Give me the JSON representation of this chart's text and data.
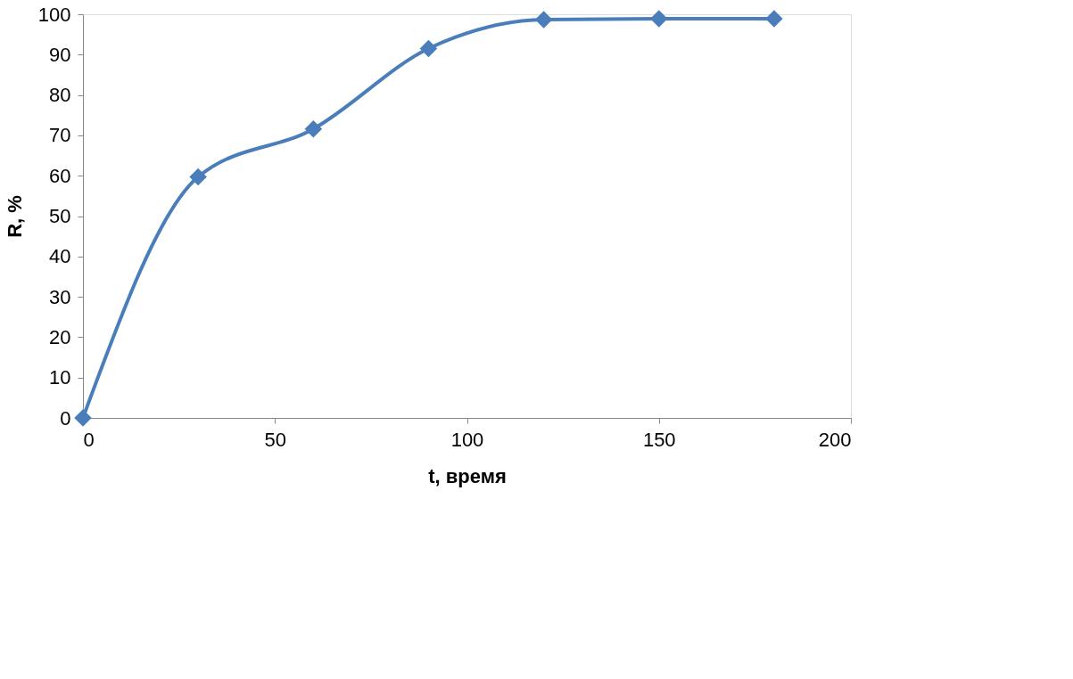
{
  "chart_data": {
    "type": "line",
    "xlabel": "t, время",
    "ylabel": "R, %",
    "x": [
      0,
      30,
      60,
      90,
      120,
      150,
      180
    ],
    "series": [
      {
        "color": "#4a7ebb",
        "values": [
          0,
          59.7,
          71.6,
          91.5,
          98.7,
          98.9,
          98.9
        ]
      }
    ],
    "xlim": [
      0,
      200
    ],
    "xticks": [
      0,
      50,
      100,
      150,
      200
    ],
    "ylim": [
      0,
      100
    ],
    "yticks": [
      0,
      10,
      20,
      30,
      40,
      50,
      60,
      70,
      80,
      90,
      100
    ],
    "grid": false,
    "marker": "diamond",
    "line_style": "solid"
  }
}
